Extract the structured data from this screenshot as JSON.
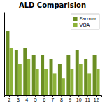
{
  "chart_data": {
    "type": "bar",
    "title": "ALD Comparision",
    "categories": [
      "2",
      "3",
      "4",
      "5",
      "6",
      "7",
      "8",
      "9",
      "10",
      "11",
      "12"
    ],
    "series": [
      {
        "name": "Farmer",
        "color": "#6b8e23",
        "values": [
          0.82,
          0.74,
          0.75,
          0.72,
          0.72,
          0.7,
          0.68,
          0.72,
          0.74,
          0.7,
          0.72
        ]
      },
      {
        "name": "VOA",
        "color": "#8db33a",
        "values": [
          0.75,
          0.68,
          0.7,
          0.66,
          0.66,
          0.64,
          0.62,
          0.66,
          0.68,
          0.64,
          0.66
        ]
      }
    ],
    "ylim": [
      0.55,
      0.9
    ],
    "yticks": [],
    "grid": false,
    "legend": "upper right",
    "tick_labels": "x"
  }
}
